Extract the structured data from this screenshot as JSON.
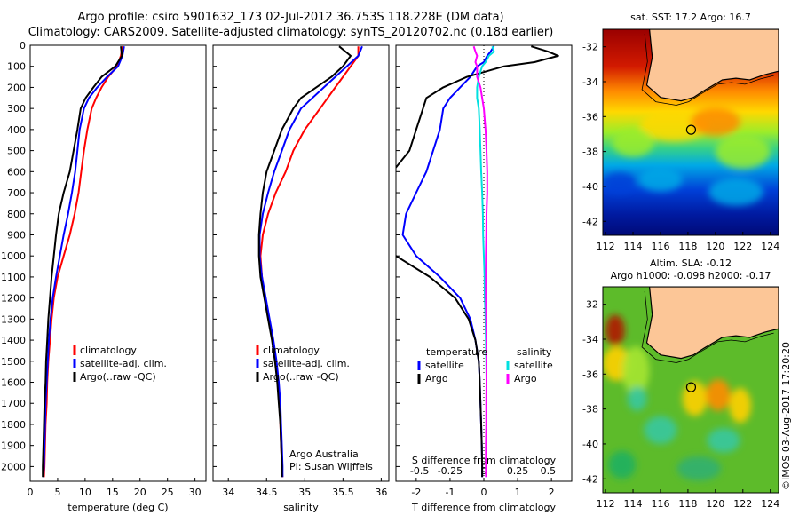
{
  "header": {
    "title_line1": "Argo profile: csiro 5901632_173 02-Jul-2012 36.753S 118.228E (DM data)",
    "title_line2": "Climatology: CARS2009. Satellite-adjusted climatology: synTS_20120702.nc (0.18d earlier)"
  },
  "colors": {
    "climatology": "#ff0000",
    "satellite": "#0000ff",
    "argo": "#000000",
    "sal_satellite": "#00e0e0",
    "sal_argo": "#ff00ff",
    "land": "#fcc697"
  },
  "chart_data": [
    {
      "type": "line",
      "id": "temperature",
      "xlabel": "temperature (deg C)",
      "ylabel": "",
      "xlim": [
        0,
        32
      ],
      "ylim": [
        2070,
        0
      ],
      "xticks": [
        0,
        5,
        10,
        15,
        20,
        25,
        30
      ],
      "yticks": [
        0,
        100,
        200,
        300,
        400,
        500,
        600,
        700,
        800,
        900,
        1000,
        1100,
        1200,
        1300,
        1400,
        1500,
        1600,
        1700,
        1800,
        1900,
        2000
      ],
      "legend": [
        "climatology",
        "satellite-adj. clim.",
        "Argo(..raw -QC)"
      ],
      "legend_position": "lower-center",
      "depth": [
        5,
        50,
        100,
        150,
        200,
        250,
        300,
        400,
        500,
        600,
        700,
        800,
        900,
        1000,
        1100,
        1200,
        1300,
        1400,
        1500,
        1600,
        1700,
        1800,
        1900,
        2000,
        2050
      ],
      "series": [
        {
          "name": "climatology",
          "values": [
            16.8,
            16.5,
            15.8,
            14.2,
            13.0,
            12.0,
            11.2,
            10.4,
            9.8,
            9.3,
            8.8,
            8.1,
            7.2,
            6.1,
            5.0,
            4.3,
            3.9,
            3.6,
            3.3,
            3.1,
            3.0,
            2.8,
            2.7,
            2.6,
            2.5
          ]
        },
        {
          "name": "satellite-adj. clim.",
          "values": [
            17.1,
            16.8,
            16.0,
            14.0,
            12.2,
            10.7,
            9.8,
            9.0,
            8.6,
            8.2,
            7.6,
            6.9,
            6.1,
            5.4,
            4.7,
            4.1,
            3.7,
            3.4,
            3.2,
            3.0,
            2.8,
            2.7,
            2.6,
            2.5,
            2.4
          ]
        },
        {
          "name": "Argo(..raw -QC)",
          "values": [
            16.5,
            16.7,
            15.5,
            13.0,
            11.5,
            10.1,
            9.2,
            8.6,
            7.9,
            7.2,
            6.1,
            5.2,
            4.7,
            4.3,
            3.9,
            3.6,
            3.3,
            3.1,
            2.9,
            2.8,
            2.6,
            2.5,
            2.4,
            2.3,
            2.3
          ]
        }
      ]
    },
    {
      "type": "line",
      "id": "salinity",
      "xlabel": "salinity",
      "xlim": [
        33.8,
        36.1
      ],
      "ylim": [
        2070,
        0
      ],
      "xticks": [
        34,
        34.5,
        35,
        35.5,
        36
      ],
      "legend": [
        "climatology",
        "satellite-adj. clim.",
        "Argo(..raw -QC)"
      ],
      "legend_position": "lower-center",
      "annotation": [
        "Argo Australia",
        "PI: Susan Wijffels"
      ],
      "depth": [
        5,
        50,
        100,
        150,
        200,
        250,
        300,
        400,
        500,
        600,
        700,
        800,
        900,
        1000,
        1100,
        1200,
        1300,
        1400,
        1500,
        1600,
        1700,
        1800,
        1900,
        2000,
        2050
      ],
      "series": [
        {
          "name": "climatology",
          "values": [
            35.7,
            35.7,
            35.6,
            35.5,
            35.4,
            35.3,
            35.2,
            35.0,
            34.85,
            34.75,
            34.62,
            34.52,
            34.45,
            34.42,
            34.44,
            34.48,
            34.53,
            34.58,
            34.62,
            34.65,
            34.67,
            34.68,
            34.69,
            34.7,
            34.71
          ]
        },
        {
          "name": "satellite-adj. clim.",
          "values": [
            35.75,
            35.7,
            35.55,
            35.4,
            35.25,
            35.1,
            34.95,
            34.8,
            34.7,
            34.6,
            34.52,
            34.45,
            34.41,
            34.41,
            34.44,
            34.49,
            34.54,
            34.59,
            34.63,
            34.66,
            34.68,
            34.69,
            34.7,
            34.71,
            34.71
          ]
        },
        {
          "name": "Argo(..raw -QC)",
          "values": [
            35.45,
            35.6,
            35.5,
            35.35,
            35.15,
            34.95,
            34.85,
            34.7,
            34.6,
            34.5,
            34.45,
            34.42,
            34.4,
            34.4,
            34.42,
            34.47,
            34.52,
            34.57,
            34.61,
            34.64,
            34.66,
            34.68,
            34.69,
            34.7,
            34.7
          ]
        }
      ]
    },
    {
      "type": "line",
      "id": "difference",
      "xlabel": "T difference from climatology",
      "top_axis_label": "S difference from climatology",
      "xlim": [
        -2.6,
        2.6
      ],
      "ylim": [
        2070,
        0
      ],
      "xticks": [
        -2,
        -1,
        0,
        1,
        2
      ],
      "top_ticks": [
        "-0.5",
        "-0.25",
        "0",
        "0.25",
        "0.5"
      ],
      "legend_titles": [
        "temperature",
        "salinity"
      ],
      "legend": [
        "satellite",
        "Argo",
        "satellite",
        "Argo"
      ],
      "legend_position": "lower-center",
      "depth": [
        5,
        30,
        50,
        80,
        100,
        150,
        200,
        250,
        300,
        400,
        500,
        600,
        700,
        800,
        900,
        1000,
        1100,
        1200,
        1300,
        1400,
        1500,
        1600,
        1700,
        1800,
        1900,
        2000,
        2050
      ],
      "series": [
        {
          "name": "T satellite",
          "values": [
            0.3,
            0.2,
            0.1,
            0.0,
            -0.2,
            -0.4,
            -0.7,
            -1.0,
            -1.2,
            -1.3,
            -1.5,
            -1.7,
            -2.0,
            -2.3,
            -2.4,
            -2.0,
            -1.3,
            -0.7,
            -0.4,
            -0.25,
            -0.15,
            -0.12,
            -0.1,
            -0.08,
            -0.06,
            -0.05,
            -0.05
          ]
        },
        {
          "name": "T Argo",
          "values": [
            1.4,
            1.9,
            2.2,
            1.5,
            0.6,
            -0.5,
            -1.2,
            -1.7,
            -1.8,
            -2.0,
            -2.2,
            -2.7,
            -3.1,
            -3.3,
            -3.2,
            -2.6,
            -1.6,
            -0.85,
            -0.45,
            -0.25,
            -0.15,
            -0.12,
            -0.1,
            -0.08,
            -0.06,
            -0.05,
            -0.05
          ]
        },
        {
          "name": "S satellite",
          "values": [
            0.25,
            0.3,
            0.15,
            0.05,
            -0.05,
            -0.15,
            -0.2,
            -0.2,
            -0.15,
            -0.12,
            -0.1,
            -0.08,
            -0.05,
            -0.03,
            -0.02,
            0.0,
            0.02,
            0.03,
            0.05,
            0.06,
            0.07,
            0.08,
            0.08,
            0.08,
            0.07,
            0.07,
            0.07
          ]
        },
        {
          "name": "S Argo",
          "values": [
            -0.3,
            -0.25,
            -0.2,
            -0.25,
            -0.2,
            -0.2,
            -0.1,
            -0.05,
            0.0,
            0.05,
            0.08,
            0.1,
            0.1,
            0.08,
            0.07,
            0.06,
            0.06,
            0.06,
            0.07,
            0.08,
            0.08,
            0.08,
            0.07,
            0.07,
            0.06,
            0.06,
            0.06
          ]
        }
      ]
    },
    {
      "type": "heatmap",
      "id": "sst-map",
      "title": "sat. SST: 17.2  Argo: 16.7",
      "xlim": [
        111.8,
        124.6
      ],
      "ylim": [
        -42.8,
        -31
      ],
      "xticks": [
        112,
        114,
        116,
        118,
        120,
        122,
        124
      ],
      "yticks": [
        -32,
        -34,
        -36,
        -38,
        -40,
        -42
      ],
      "argo_position": {
        "lon": 118.228,
        "lat": -36.753
      }
    },
    {
      "type": "heatmap",
      "id": "sla-map",
      "title_line1": "Altim. SLA: -0.12",
      "title_line2": "Argo h1000: -0.098  h2000: -0.17",
      "xlim": [
        111.8,
        124.6
      ],
      "ylim": [
        -42.8,
        -31
      ],
      "xticks": [
        112,
        114,
        116,
        118,
        120,
        122,
        124
      ],
      "yticks": [
        -32,
        -34,
        -36,
        -38,
        -40,
        -42
      ],
      "argo_position": {
        "lon": 118.228,
        "lat": -36.753
      }
    }
  ],
  "footer": {
    "credit": "©IMOS 03-Aug-2017 17:20:20"
  }
}
